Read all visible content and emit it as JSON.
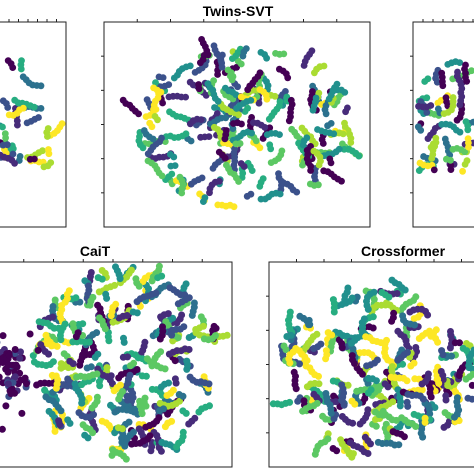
{
  "figure": {
    "palette": [
      "#440154",
      "#472c7a",
      "#3b518b",
      "#2c718e",
      "#21908d",
      "#27ad81",
      "#5cc863",
      "#aadc32",
      "#fde725"
    ]
  },
  "chart_data": [
    {
      "type": "scatter",
      "title": "",
      "grid": false,
      "visible_extent": "partial-left",
      "layout": "scattered-cluster",
      "seed": 11,
      "count": 130
    },
    {
      "type": "scatter",
      "title": "Twins-SVT",
      "grid": false,
      "layout": "round-cloud",
      "seed": 23,
      "count": 620
    },
    {
      "type": "scatter",
      "title": "",
      "grid": false,
      "visible_extent": "partial-right",
      "layout": "scattered-cluster",
      "seed": 37,
      "count": 170
    },
    {
      "type": "scatter",
      "title": "CaiT",
      "grid": false,
      "layout": "round-cloud-with-dark-cluster-left",
      "seed": 51,
      "count": 720
    },
    {
      "type": "scatter",
      "title": "Crossformer",
      "grid": false,
      "layout": "round-cloud",
      "seed": 67,
      "count": 700
    }
  ]
}
